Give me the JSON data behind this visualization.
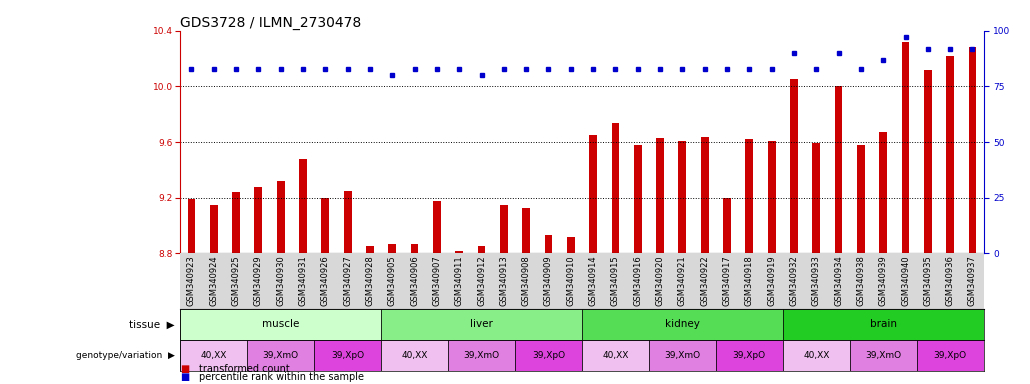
{
  "title": "GDS3728 / ILMN_2730478",
  "samples": [
    "GSM340923",
    "GSM340924",
    "GSM340925",
    "GSM340929",
    "GSM340930",
    "GSM340931",
    "GSM340926",
    "GSM340927",
    "GSM340928",
    "GSM340905",
    "GSM340906",
    "GSM340907",
    "GSM340911",
    "GSM340912",
    "GSM340913",
    "GSM340908",
    "GSM340909",
    "GSM340910",
    "GSM340914",
    "GSM340915",
    "GSM340916",
    "GSM340920",
    "GSM340921",
    "GSM340922",
    "GSM340917",
    "GSM340918",
    "GSM340919",
    "GSM340932",
    "GSM340933",
    "GSM340934",
    "GSM340938",
    "GSM340939",
    "GSM340940",
    "GSM340935",
    "GSM340936",
    "GSM340937"
  ],
  "bar_values": [
    9.19,
    9.15,
    9.24,
    9.28,
    9.32,
    9.48,
    9.2,
    9.25,
    8.85,
    8.87,
    8.87,
    9.18,
    8.82,
    8.85,
    9.15,
    9.13,
    8.93,
    8.92,
    9.65,
    9.74,
    9.58,
    9.63,
    9.61,
    9.64,
    9.2,
    9.62,
    9.61,
    10.05,
    9.59,
    10.0,
    9.58,
    9.67,
    10.32,
    10.12,
    10.22,
    10.28
  ],
  "percentile_values": [
    83,
    83,
    83,
    83,
    83,
    83,
    83,
    83,
    83,
    80,
    83,
    83,
    83,
    80,
    83,
    83,
    83,
    83,
    83,
    83,
    83,
    83,
    83,
    83,
    83,
    83,
    83,
    90,
    83,
    90,
    83,
    87,
    97,
    92,
    92,
    92
  ],
  "bar_color": "#cc0000",
  "dot_color": "#0000cc",
  "ylim_left": [
    8.8,
    10.4
  ],
  "ylim_right": [
    0,
    100
  ],
  "yticks_left": [
    8.8,
    9.2,
    9.6,
    10.0,
    10.4
  ],
  "yticks_right": [
    0,
    25,
    50,
    75,
    100
  ],
  "grid_values": [
    9.2,
    9.6,
    10.0
  ],
  "bg_color": "white",
  "xtick_bg": "#d8d8d8",
  "tissues": [
    {
      "label": "muscle",
      "start": 0,
      "end": 8,
      "color": "#ccffcc"
    },
    {
      "label": "liver",
      "start": 9,
      "end": 17,
      "color": "#88ee88"
    },
    {
      "label": "kidney",
      "start": 18,
      "end": 26,
      "color": "#55dd55"
    },
    {
      "label": "brain",
      "start": 27,
      "end": 35,
      "color": "#22cc22"
    }
  ],
  "genotypes": [
    {
      "label": "40,XX",
      "start": 0,
      "end": 2,
      "color": "#f0c0f0"
    },
    {
      "label": "39,XmO",
      "start": 3,
      "end": 5,
      "color": "#e080e0"
    },
    {
      "label": "39,XpO",
      "start": 6,
      "end": 8,
      "color": "#dd44dd"
    },
    {
      "label": "40,XX",
      "start": 9,
      "end": 11,
      "color": "#f0c0f0"
    },
    {
      "label": "39,XmO",
      "start": 12,
      "end": 14,
      "color": "#e080e0"
    },
    {
      "label": "39,XpO",
      "start": 15,
      "end": 17,
      "color": "#dd44dd"
    },
    {
      "label": "40,XX",
      "start": 18,
      "end": 20,
      "color": "#f0c0f0"
    },
    {
      "label": "39,XmO",
      "start": 21,
      "end": 23,
      "color": "#e080e0"
    },
    {
      "label": "39,XpO",
      "start": 24,
      "end": 26,
      "color": "#dd44dd"
    },
    {
      "label": "40,XX",
      "start": 27,
      "end": 29,
      "color": "#f0c0f0"
    },
    {
      "label": "39,XmO",
      "start": 30,
      "end": 32,
      "color": "#e080e0"
    },
    {
      "label": "39,XpO",
      "start": 33,
      "end": 35,
      "color": "#dd44dd"
    }
  ],
  "legend_bar_color": "#cc0000",
  "legend_dot_color": "#0000cc",
  "legend_bar_label": "transformed count",
  "legend_dot_label": "percentile rank within the sample",
  "red_color": "#cc0000",
  "title_fontsize": 10,
  "tick_fontsize": 6.5,
  "label_fontsize": 8,
  "bar_width": 0.35
}
